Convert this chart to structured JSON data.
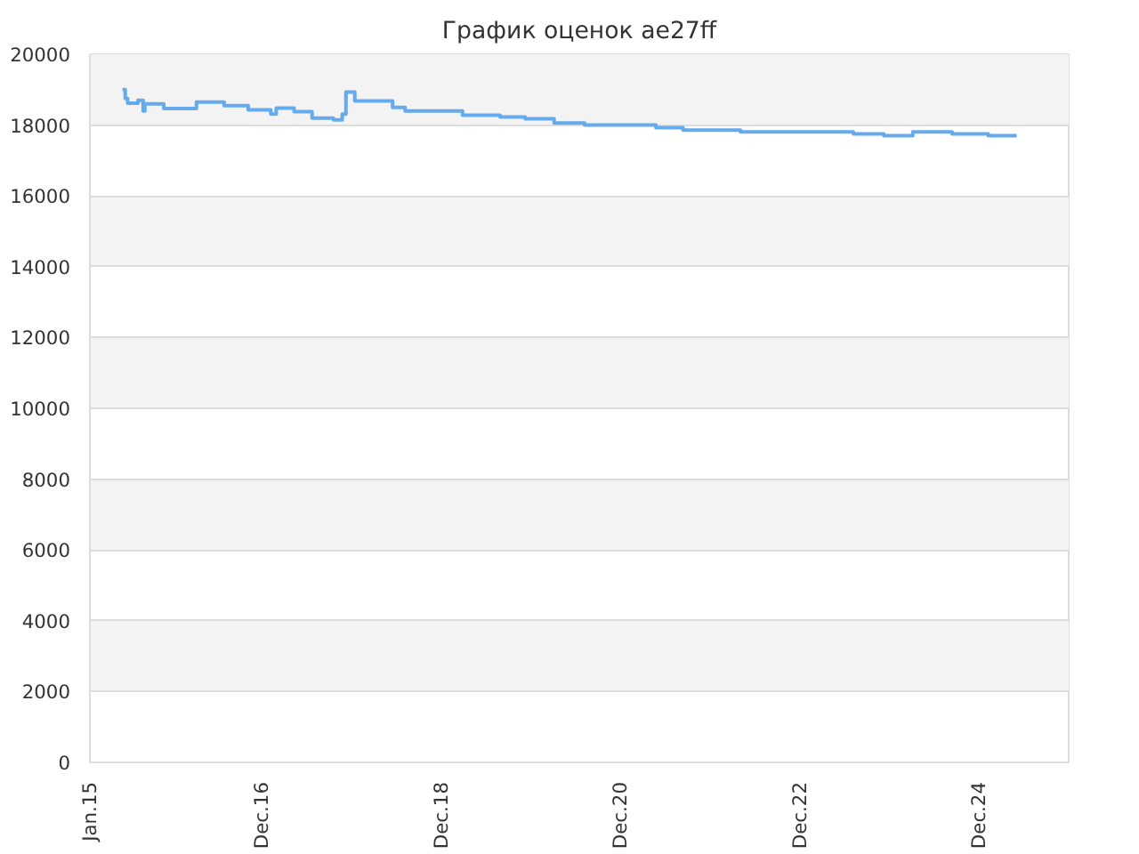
{
  "chart_data": {
    "type": "step",
    "title": "График оценок ae27ff",
    "x": [
      "2015-05-14",
      "2015-05-25",
      "2015-06-04",
      "2015-07-16",
      "2015-08-06",
      "2015-08-13",
      "2015-10-29",
      "2016-03-10",
      "2016-07-01",
      "2016-10-07",
      "2017-01-07",
      "2017-01-29",
      "2017-04-12",
      "2017-06-24",
      "2017-09-19",
      "2017-10-25",
      "2017-11-09",
      "2017-12-15",
      "2018-05-18",
      "2018-07-08",
      "2019-02-27",
      "2019-07-30",
      "2019-11-09",
      "2020-03-06",
      "2020-07-08",
      "2021-04-25",
      "2021-08-13",
      "2022-04-04",
      "2023-07-08",
      "2023-11-09",
      "2024-03-06",
      "2024-08-13",
      "2025-01-07",
      "2025-05-03"
    ],
    "series": [
      {
        "color": "#66aaee",
        "values": [
          19000,
          18750,
          18620,
          18700,
          18400,
          18600,
          18470,
          18650,
          18550,
          18430,
          18310,
          18480,
          18380,
          18200,
          18150,
          18310,
          18930,
          18680,
          18500,
          18400,
          18280,
          18230,
          18180,
          18060,
          18000,
          17930,
          17860,
          17810,
          17750,
          17700,
          17810,
          17750,
          17700,
          17700
        ]
      }
    ],
    "xlim": [
      "2015-01-01",
      "2025-12-01"
    ],
    "xticks": [
      {
        "value": "2015-01-01",
        "label": "Jan.15"
      },
      {
        "value": "2016-12-01",
        "label": "Dec.16"
      },
      {
        "value": "2018-12-01",
        "label": "Dec.18"
      },
      {
        "value": "2020-12-01",
        "label": "Dec.20"
      },
      {
        "value": "2022-12-01",
        "label": "Dec.22"
      },
      {
        "value": "2024-12-01",
        "label": "Dec.24"
      }
    ],
    "ylim": [
      0,
      20000
    ],
    "yticks": [
      0,
      2000,
      4000,
      6000,
      8000,
      10000,
      12000,
      14000,
      16000,
      18000,
      20000
    ],
    "grid": "y",
    "marker": "none",
    "line_style": "solid"
  }
}
